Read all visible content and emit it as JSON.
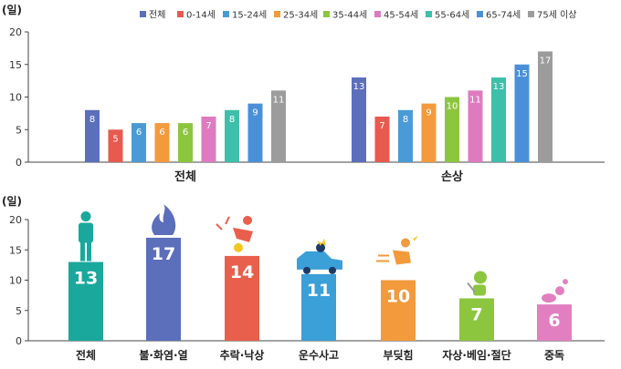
{
  "chart_data": [
    {
      "type": "bar",
      "ylabel": "(일)",
      "ylim": [
        0,
        20
      ],
      "yticks": [
        0,
        5,
        10,
        15,
        20
      ],
      "grid": false,
      "legend": "top-right",
      "categories": [
        "전체",
        "손상"
      ],
      "series": [
        {
          "name": "전체",
          "color": "#5b6fba",
          "values": [
            8,
            13
          ]
        },
        {
          "name": "0-14세",
          "color": "#e85a4f",
          "values": [
            5,
            7
          ]
        },
        {
          "name": "15-24세",
          "color": "#4a9bd4",
          "values": [
            6,
            8
          ]
        },
        {
          "name": "25-34세",
          "color": "#f39a3c",
          "values": [
            6,
            9
          ]
        },
        {
          "name": "35-44세",
          "color": "#8cc63f",
          "values": [
            6,
            10
          ]
        },
        {
          "name": "45-54세",
          "color": "#de7bc0",
          "values": [
            7,
            11
          ]
        },
        {
          "name": "55-64세",
          "color": "#3dbfa9",
          "values": [
            8,
            13
          ]
        },
        {
          "name": "65-74세",
          "color": "#4a90d9",
          "values": [
            9,
            15
          ]
        },
        {
          "name": "75세 이상",
          "color": "#9c9c9c",
          "values": [
            11,
            17
          ]
        }
      ]
    },
    {
      "type": "bar",
      "ylabel": "(일)",
      "ylim": [
        0,
        20
      ],
      "yticks": [
        0,
        5,
        10,
        15,
        20
      ],
      "grid": false,
      "categories": [
        "전체",
        "불·화염·열",
        "추락·낙상",
        "운수사고",
        "부딪힘",
        "자상·베임·절단",
        "중독"
      ],
      "values": [
        13,
        17,
        14,
        11,
        10,
        7,
        6
      ],
      "colors": [
        "#1aa89c",
        "#5b6fba",
        "#e8604c",
        "#3b9fd8",
        "#f39a3c",
        "#8cc63f",
        "#e27fc1"
      ],
      "icons": [
        "person-icon",
        "flame-icon",
        "fall-icon",
        "car-crash-icon",
        "impact-icon",
        "cut-icon",
        "pills-icon"
      ]
    }
  ]
}
